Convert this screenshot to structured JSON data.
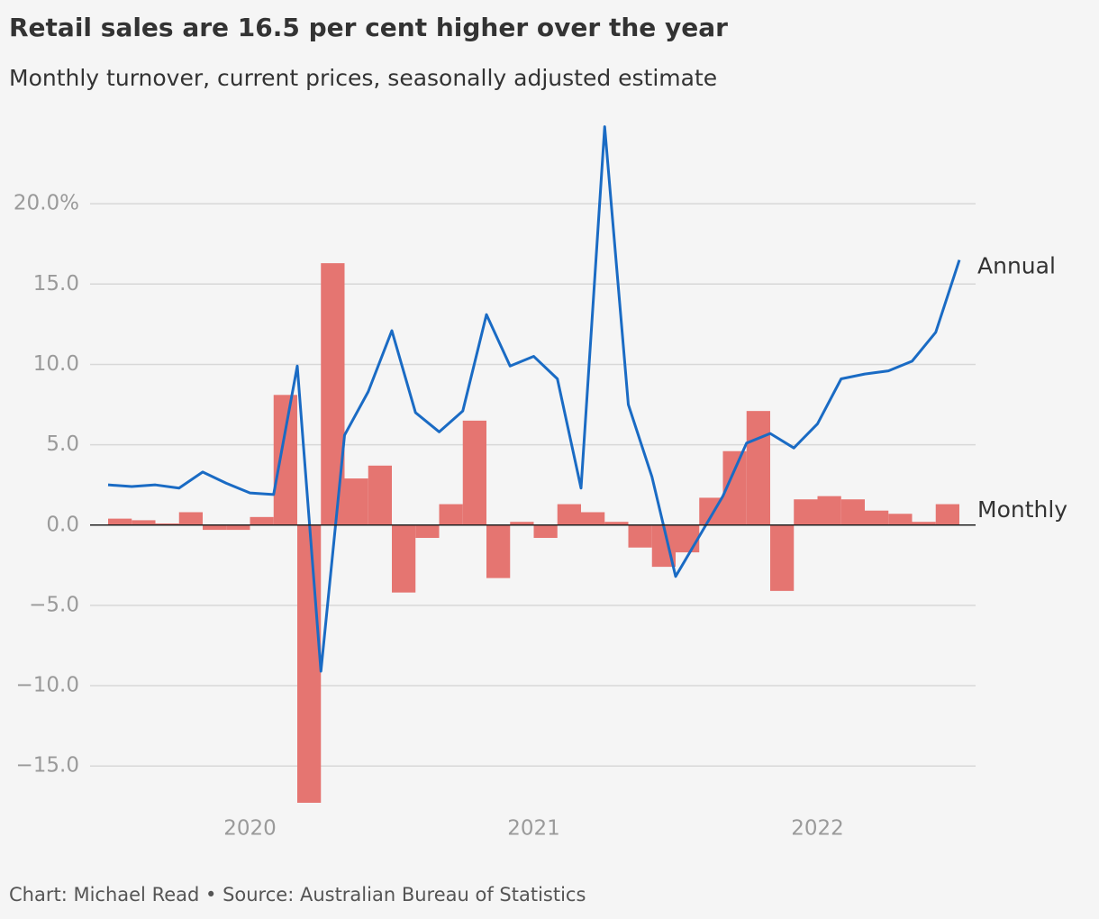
{
  "chart_data": {
    "type": "bar-line",
    "title": "Retail sales are 16.5 per cent higher over the year",
    "subtitle": "Monthly turnover, current prices, seasonally adjusted estimate",
    "source": "Chart: Michael Read • Source: Australian Bureau of Statistics",
    "categories": [
      null,
      null,
      null,
      null,
      null,
      null,
      "2020",
      null,
      null,
      null,
      null,
      null,
      null,
      null,
      null,
      null,
      null,
      null,
      "2021",
      null,
      null,
      null,
      null,
      null,
      null,
      null,
      null,
      null,
      null,
      null,
      "2022",
      null,
      null,
      null,
      null,
      null,
      null
    ],
    "series": [
      {
        "name": "Monthly",
        "type": "bar",
        "color": "#e57571",
        "values": [
          null,
          0.4,
          0.3,
          0.1,
          0.8,
          -0.3,
          -0.3,
          0.5,
          8.1,
          -17.5,
          16.3,
          2.9,
          3.7,
          -4.2,
          -0.8,
          1.3,
          6.5,
          -3.3,
          0.2,
          -0.8,
          1.3,
          0.8,
          0.2,
          -1.4,
          -2.6,
          -1.7,
          1.7,
          4.6,
          7.1,
          -4.1,
          1.6,
          1.8,
          1.6,
          0.9,
          0.7,
          0.2,
          1.3
        ]
      },
      {
        "name": "Annual",
        "type": "line",
        "color": "#1a6bc4",
        "values": [
          2.5,
          2.4,
          2.5,
          2.3,
          3.3,
          2.6,
          2.0,
          1.9,
          9.9,
          -9.1,
          5.6,
          8.3,
          12.1,
          7.0,
          5.8,
          7.1,
          13.1,
          9.9,
          10.5,
          9.1,
          2.3,
          24.8,
          7.5,
          3.0,
          -3.2,
          -0.7,
          1.8,
          5.1,
          5.7,
          4.8,
          6.3,
          9.1,
          9.4,
          9.6,
          10.2,
          12.0,
          16.5
        ]
      }
    ],
    "ylim": [
      -17.4,
      25.0
    ],
    "yticks": [
      {
        "value": -15,
        "label": "−15.0"
      },
      {
        "value": -10,
        "label": "−10.0"
      },
      {
        "value": -5,
        "label": "−5.0"
      },
      {
        "value": 0,
        "label": "0.0"
      },
      {
        "value": 5,
        "label": "5.0"
      },
      {
        "value": 10,
        "label": "10.0"
      },
      {
        "value": 15,
        "label": "15.0"
      },
      {
        "value": 20,
        "label": "20.0%"
      }
    ],
    "grid": true
  }
}
